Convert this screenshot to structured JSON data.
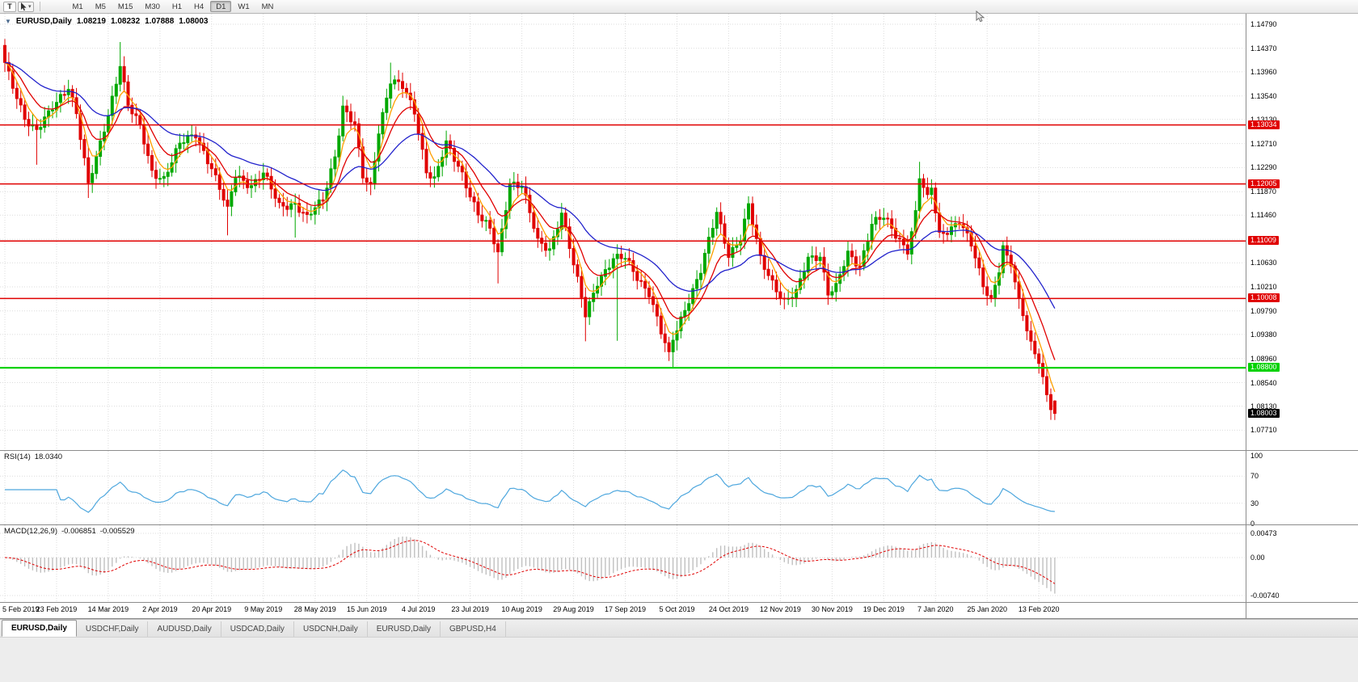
{
  "toolbar": {
    "text_tool_label": "T",
    "timeframes": [
      {
        "label": "M1",
        "active": false
      },
      {
        "label": "M5",
        "active": false
      },
      {
        "label": "M15",
        "active": false
      },
      {
        "label": "M30",
        "active": false
      },
      {
        "label": "H1",
        "active": false
      },
      {
        "label": "H4",
        "active": false
      },
      {
        "label": "D1",
        "active": true
      },
      {
        "label": "W1",
        "active": false
      },
      {
        "label": "MN",
        "active": false
      }
    ]
  },
  "chart_header": {
    "collapse_arrow": "▼",
    "symbol": "EURUSD,Daily",
    "open": "1.08219",
    "high": "1.08232",
    "low": "1.07888",
    "close": "1.08003"
  },
  "tabs": [
    {
      "label": "EURUSD,Daily",
      "active": true
    },
    {
      "label": "USDCHF,Daily",
      "active": false
    },
    {
      "label": "AUDUSD,Daily",
      "active": false
    },
    {
      "label": "USDCAD,Daily",
      "active": false
    },
    {
      "label": "USDCNH,Daily",
      "active": false
    },
    {
      "label": "EURUSD,Daily",
      "active": false
    },
    {
      "label": "GBPUSD,H4",
      "active": false
    }
  ],
  "chart_data": {
    "type": "candlestick",
    "symbol": "EURUSD",
    "timeframe": "Daily",
    "up_color": "#00a800",
    "down_color": "#e00000",
    "candle_count": 265,
    "candles_per_time_tick": 13,
    "first_open": 1.1442,
    "price_scale": {
      "top": 1.14973,
      "bottom": 1.07364
    },
    "price_ticks": [
      {
        "label": "1.14790",
        "value": 1.1479
      },
      {
        "label": "1.14370",
        "value": 1.1437
      },
      {
        "label": "1.13960",
        "value": 1.1396
      },
      {
        "label": "1.13540",
        "value": 1.1354
      },
      {
        "label": "1.13130",
        "value": 1.1313
      },
      {
        "label": "1.12710",
        "value": 1.1271
      },
      {
        "label": "1.12290",
        "value": 1.1229
      },
      {
        "label": "1.11870",
        "value": 1.1187
      },
      {
        "label": "1.11460",
        "value": 1.1146
      },
      {
        "label": "1.11040",
        "value": 1.1104
      },
      {
        "label": "1.10630",
        "value": 1.1063
      },
      {
        "label": "1.10210",
        "value": 1.1021
      },
      {
        "label": "1.09790",
        "value": 1.0979
      },
      {
        "label": "1.09380",
        "value": 1.0938
      },
      {
        "label": "1.08960",
        "value": 1.0896
      },
      {
        "label": "1.08540",
        "value": 1.0854
      },
      {
        "label": "1.08130",
        "value": 1.0813
      },
      {
        "label": "1.07710",
        "value": 1.0771
      }
    ],
    "time_axis": [
      "5 Feb 2019",
      "23 Feb 2019",
      "14 Mar 2019",
      "2 Apr 2019",
      "20 Apr 2019",
      "9 May 2019",
      "28 May 2019",
      "15 Jun 2019",
      "4 Jul 2019",
      "23 Jul 2019",
      "10 Aug 2019",
      "29 Aug 2019",
      "17 Sep 2019",
      "5 Oct 2019",
      "24 Oct 2019",
      "12 Nov 2019",
      "30 Nov 2019",
      "19 Dec 2019",
      "7 Jan 2020",
      "25 Jan 2020",
      "13 Feb 2020"
    ],
    "anchor_closes": [
      [
        0,
        1.1408
      ],
      [
        2,
        1.1368
      ],
      [
        5,
        1.1318
      ],
      [
        8,
        1.1296
      ],
      [
        11,
        1.132
      ],
      [
        13,
        1.134
      ],
      [
        16,
        1.1372
      ],
      [
        18,
        1.1328
      ],
      [
        21,
        1.1198
      ],
      [
        23,
        1.1242
      ],
      [
        26,
        1.1322
      ],
      [
        29,
        1.1412
      ],
      [
        31,
        1.1338
      ],
      [
        34,
        1.1298
      ],
      [
        37,
        1.1222
      ],
      [
        40,
        1.1212
      ],
      [
        44,
        1.1268
      ],
      [
        48,
        1.1288
      ],
      [
        52,
        1.123
      ],
      [
        56,
        1.1152
      ],
      [
        58,
        1.1216
      ],
      [
        62,
        1.12
      ],
      [
        65,
        1.1218
      ],
      [
        69,
        1.1162
      ],
      [
        73,
        1.1168
      ],
      [
        76,
        1.114
      ],
      [
        80,
        1.1172
      ],
      [
        83,
        1.1252
      ],
      [
        85,
        1.1335
      ],
      [
        88,
        1.13
      ],
      [
        90,
        1.1212
      ],
      [
        92,
        1.1196
      ],
      [
        94,
        1.1296
      ],
      [
        97,
        1.138
      ],
      [
        100,
        1.1368
      ],
      [
        103,
        1.1328
      ],
      [
        106,
        1.1226
      ],
      [
        108,
        1.1208
      ],
      [
        111,
        1.1268
      ],
      [
        115,
        1.122
      ],
      [
        119,
        1.1148
      ],
      [
        122,
        1.1118
      ],
      [
        124,
        1.1078
      ],
      [
        127,
        1.1205
      ],
      [
        130,
        1.1198
      ],
      [
        134,
        1.1098
      ],
      [
        137,
        1.1088
      ],
      [
        140,
        1.1152
      ],
      [
        143,
        1.1058
      ],
      [
        146,
        1.0972
      ],
      [
        149,
        1.1032
      ],
      [
        153,
        1.1068
      ],
      [
        156,
        1.107
      ],
      [
        159,
        1.104
      ],
      [
        162,
        1.1012
      ],
      [
        165,
        1.094
      ],
      [
        167,
        1.0899
      ],
      [
        168,
        1.093
      ],
      [
        171,
        1.0985
      ],
      [
        175,
        1.1048
      ],
      [
        179,
        1.115
      ],
      [
        182,
        1.108
      ],
      [
        185,
        1.1106
      ],
      [
        187,
        1.116
      ],
      [
        190,
        1.107
      ],
      [
        193,
        1.1032
      ],
      [
        196,
        1.0995
      ],
      [
        199,
        1.1008
      ],
      [
        202,
        1.1072
      ],
      [
        205,
        1.1078
      ],
      [
        207,
        1.101
      ],
      [
        209,
        1.1018
      ],
      [
        212,
        1.1078
      ],
      [
        215,
        1.106
      ],
      [
        218,
        1.1132
      ],
      [
        221,
        1.114
      ],
      [
        224,
        1.1112
      ],
      [
        227,
        1.1088
      ],
      [
        229,
        1.115
      ],
      [
        230,
        1.1212
      ],
      [
        232,
        1.1172
      ],
      [
        233,
        1.1192
      ],
      [
        235,
        1.1112
      ],
      [
        237,
        1.1122
      ],
      [
        240,
        1.1136
      ],
      [
        243,
        1.1092
      ],
      [
        246,
        1.1024
      ],
      [
        248,
        1.1002
      ],
      [
        250,
        1.1048
      ],
      [
        251,
        1.1092
      ],
      [
        253,
        1.1058
      ],
      [
        255,
        1.0998
      ],
      [
        257,
        1.0945
      ],
      [
        259,
        1.0906
      ],
      [
        260,
        1.089
      ],
      [
        261,
        1.0864
      ],
      [
        262,
        1.0833
      ],
      [
        263,
        1.0808
      ],
      [
        264,
        1.08
      ]
    ],
    "spike_lows": [
      [
        8,
        1.1234
      ],
      [
        21,
        1.1176
      ],
      [
        56,
        1.1111
      ],
      [
        73,
        1.1107
      ],
      [
        92,
        1.1181
      ],
      [
        124,
        1.1027
      ],
      [
        146,
        1.0926
      ],
      [
        154,
        1.0927
      ],
      [
        168,
        1.0879
      ],
      [
        196,
        1.0989
      ]
    ],
    "spike_highs": [
      [
        29,
        1.1448
      ],
      [
        97,
        1.1412
      ],
      [
        154,
        1.1087
      ],
      [
        187,
        1.1179
      ],
      [
        230,
        1.1239
      ],
      [
        251,
        1.1095
      ]
    ],
    "last_candle": {
      "open": 1.08219,
      "high": 1.08232,
      "low": 1.07888,
      "close": 1.08003
    },
    "horizontal_lines": [
      {
        "label": "1.13034",
        "price": 1.13034,
        "color": "#e00000",
        "width": 1.5
      },
      {
        "label": "1.12005",
        "price": 1.12005,
        "color": "#e00000",
        "width": 1.5
      },
      {
        "label": "1.11009",
        "price": 1.11009,
        "color": "#e00000",
        "width": 1.5
      },
      {
        "label": "1.10008",
        "price": 1.10008,
        "color": "#e00000",
        "width": 1.5
      },
      {
        "label": "1.08800",
        "price": 1.088,
        "color": "#00d200",
        "width": 2.2
      }
    ],
    "current_price_label": {
      "label": "1.08003",
      "value": 1.08003
    },
    "moving_averages": [
      {
        "name": "ma-fast",
        "period": 5,
        "color": "#ffa000"
      },
      {
        "name": "ma-medium",
        "period": 11,
        "color": "#e00000"
      },
      {
        "name": "ma-slow",
        "period": 30,
        "color": "#2222cc"
      }
    ],
    "indicators": {
      "rsi": {
        "title": "RSI(14)",
        "value": "18.0340",
        "period": 14,
        "color": "#4ea7de",
        "axis": [
          {
            "label": "100",
            "value": 100
          },
          {
            "label": "70",
            "value": 70
          },
          {
            "label": "30",
            "value": 30
          },
          {
            "label": "0",
            "value": 0
          }
        ]
      },
      "macd": {
        "title": "MACD(12,26,9)",
        "main_value": "-0.006851",
        "signal_value": "-0.005529",
        "fast": 12,
        "slow": 26,
        "signal_period": 9,
        "histogram_color": "#c0c0c0",
        "signal_color": "#e00000",
        "axis": [
          {
            "label": "0.00473",
            "value": 0.00473
          },
          {
            "label": "0.00",
            "value": 0
          },
          {
            "label": "-0.00740",
            "value": -0.0074
          }
        ]
      }
    }
  }
}
